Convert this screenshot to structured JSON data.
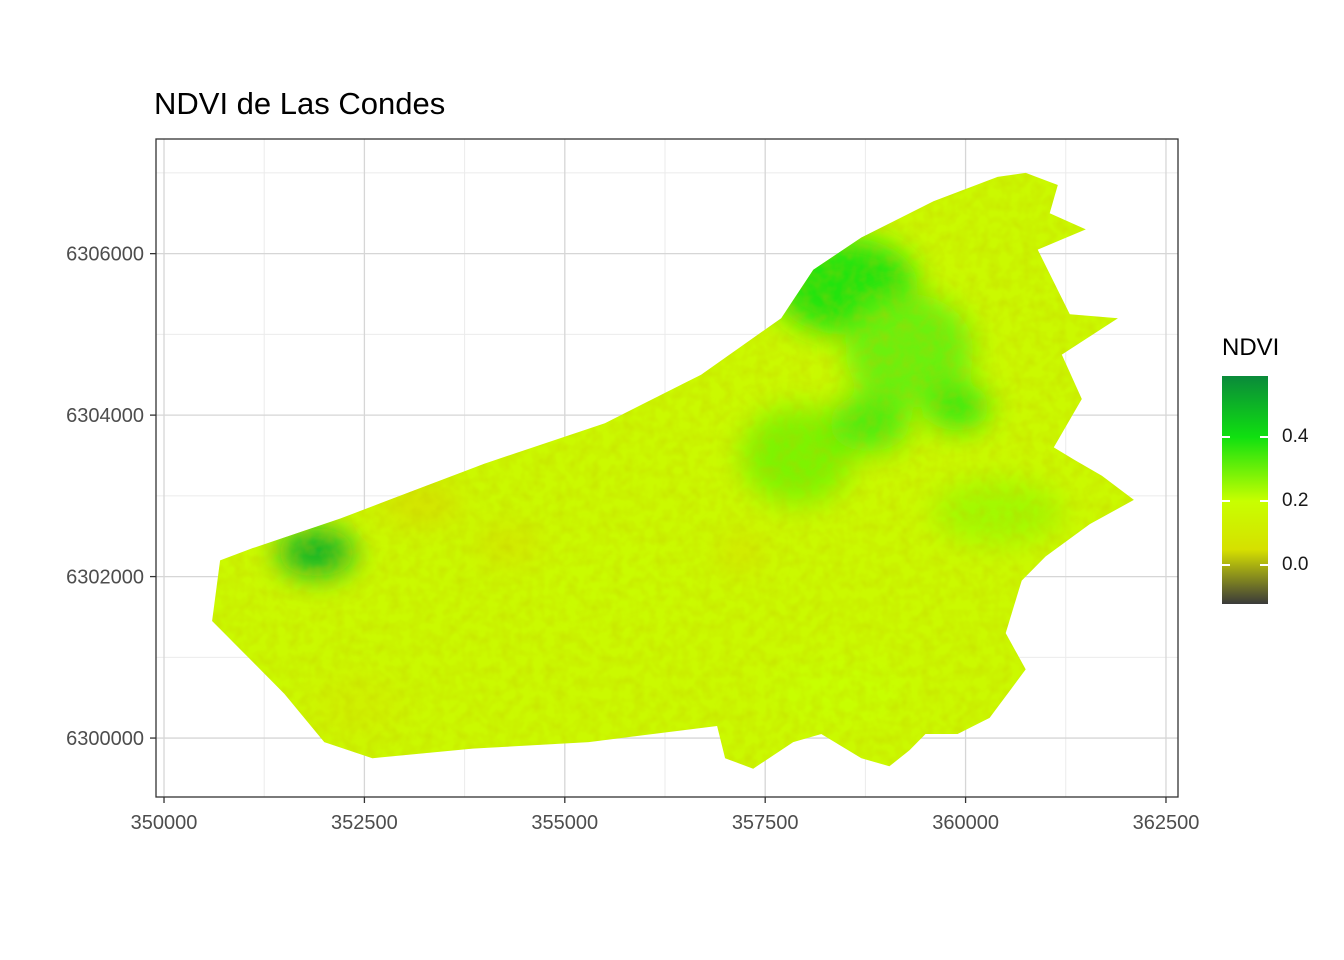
{
  "chart_data": {
    "type": "heatmap",
    "title": "NDVI de Las Condes",
    "xlabel": "",
    "ylabel": "",
    "xlim": [
      349900,
      362650
    ],
    "ylim": [
      6299270,
      6307420
    ],
    "x_ticks": [
      350000,
      352500,
      355000,
      357500,
      360000,
      362500
    ],
    "y_ticks": [
      6300000,
      6302000,
      6304000,
      6306000
    ],
    "grid": true,
    "legend": {
      "title": "NDVI",
      "position": "right",
      "range": [
        -0.12,
        0.59
      ],
      "ticks": [
        0.0,
        0.2,
        0.4
      ],
      "tick_labels": [
        "0.0",
        "0.2",
        "0.4"
      ],
      "colors": [
        {
          "value": -0.12,
          "color": "#3a3a3a"
        },
        {
          "value": 0.05,
          "color": "#d6e000"
        },
        {
          "value": 0.2,
          "color": "#c8ff00"
        },
        {
          "value": 0.4,
          "color": "#10e010"
        },
        {
          "value": 0.59,
          "color": "#0a8a3a"
        }
      ]
    },
    "boundary": [
      [
        350600,
        6301450
      ],
      [
        350700,
        6302200
      ],
      [
        351100,
        6302350
      ],
      [
        352200,
        6302720
      ],
      [
        354000,
        6303400
      ],
      [
        355500,
        6303900
      ],
      [
        356700,
        6304500
      ],
      [
        357700,
        6305200
      ],
      [
        358100,
        6305800
      ],
      [
        358700,
        6306200
      ],
      [
        359600,
        6306650
      ],
      [
        360400,
        6306950
      ],
      [
        360750,
        6307000
      ],
      [
        361150,
        6306850
      ],
      [
        361050,
        6306500
      ],
      [
        361500,
        6306300
      ],
      [
        360900,
        6306050
      ],
      [
        361300,
        6305250
      ],
      [
        361900,
        6305200
      ],
      [
        361200,
        6304750
      ],
      [
        361450,
        6304200
      ],
      [
        361100,
        6303600
      ],
      [
        361350,
        6303450
      ],
      [
        361700,
        6303250
      ],
      [
        362100,
        6302950
      ],
      [
        361550,
        6302650
      ],
      [
        361000,
        6302250
      ],
      [
        360700,
        6301950
      ],
      [
        360500,
        6301300
      ],
      [
        360750,
        6300850
      ],
      [
        360300,
        6300250
      ],
      [
        359900,
        6300050
      ],
      [
        359500,
        6300050
      ],
      [
        359300,
        6299850
      ],
      [
        359050,
        6299650
      ],
      [
        358700,
        6299750
      ],
      [
        358200,
        6300050
      ],
      [
        357850,
        6299950
      ],
      [
        357350,
        6299620
      ],
      [
        357000,
        6299750
      ],
      [
        356900,
        6300150
      ],
      [
        355300,
        6299950
      ],
      [
        353850,
        6299870
      ],
      [
        352600,
        6299750
      ],
      [
        352000,
        6299950
      ],
      [
        351500,
        6300550
      ],
      [
        350900,
        6301150
      ]
    ],
    "value_patches": [
      {
        "center": [
          351900,
          6302300
        ],
        "radius": [
          480,
          300
        ],
        "ndvi": 0.5
      },
      {
        "center": [
          358500,
          6305600
        ],
        "radius": [
          900,
          600
        ],
        "ndvi": 0.38
      },
      {
        "center": [
          359300,
          6304800
        ],
        "radius": [
          800,
          700
        ],
        "ndvi": 0.3
      },
      {
        "center": [
          357900,
          6303500
        ],
        "radius": [
          700,
          600
        ],
        "ndvi": 0.28
      },
      {
        "center": [
          360400,
          6302800
        ],
        "radius": [
          800,
          400
        ],
        "ndvi": 0.24
      },
      {
        "center": [
          358400,
          6300600
        ],
        "radius": [
          900,
          400
        ],
        "ndvi": 0.2
      },
      {
        "center": [
          353200,
          6302900
        ],
        "radius": [
          500,
          250
        ],
        "ndvi": 0.06
      },
      {
        "center": [
          354300,
          6302400
        ],
        "radius": [
          400,
          220
        ],
        "ndvi": 0.08
      },
      {
        "center": [
          357200,
          6302300
        ],
        "radius": [
          250,
          200
        ],
        "ndvi": 0.06
      },
      {
        "center": [
          358800,
          6303900
        ],
        "radius": [
          500,
          350
        ],
        "ndvi": 0.33
      },
      {
        "center": [
          359900,
          6304100
        ],
        "radius": [
          400,
          300
        ],
        "ndvi": 0.35
      },
      {
        "center": [
          355600,
          6301900
        ],
        "radius": [
          900,
          500
        ],
        "ndvi": 0.18
      },
      {
        "center": [
          352400,
          6300400
        ],
        "radius": [
          600,
          400
        ],
        "ndvi": 0.13
      }
    ]
  }
}
